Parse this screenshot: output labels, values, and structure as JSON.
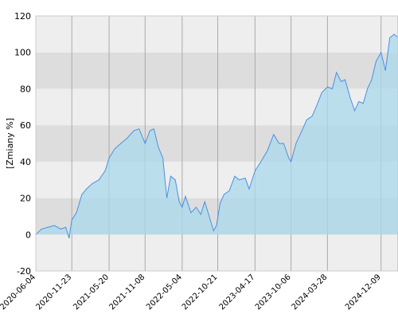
{
  "chart_data": {
    "type": "area",
    "y_label": "[Zmiany %]",
    "color": "#4a90e2",
    "fill": "#a9d8ec",
    "x": [
      "2020-06-04",
      "2020-07-01",
      "2020-08-01",
      "2020-09-01",
      "2020-10-01",
      "2020-10-25",
      "2020-11-10",
      "2020-11-23",
      "2020-12-15",
      "2021-01-10",
      "2021-02-01",
      "2021-03-01",
      "2021-04-01",
      "2021-05-01",
      "2021-05-20",
      "2021-06-15",
      "2021-07-15",
      "2021-08-15",
      "2021-09-15",
      "2021-10-10",
      "2021-11-01",
      "2021-11-08",
      "2021-12-01",
      "2021-12-20",
      "2022-01-10",
      "2022-02-01",
      "2022-02-20",
      "2022-03-10",
      "2022-04-01",
      "2022-04-20",
      "2022-05-04",
      "2022-05-20",
      "2022-06-15",
      "2022-07-10",
      "2022-08-01",
      "2022-08-20",
      "2022-09-10",
      "2022-10-01",
      "2022-10-15",
      "2022-11-01",
      "2022-11-20",
      "2022-12-15",
      "2023-01-10",
      "2023-02-01",
      "2023-03-01",
      "2023-03-20",
      "2023-04-17",
      "2023-05-15",
      "2023-06-15",
      "2023-07-15",
      "2023-08-10",
      "2023-09-01",
      "2023-09-25",
      "2023-10-06",
      "2023-10-30",
      "2023-12-01",
      "2023-12-20",
      "2024-01-15",
      "2024-02-10",
      "2024-03-01",
      "2024-03-28",
      "2024-04-20",
      "2024-05-10",
      "2024-06-01",
      "2024-06-20",
      "2024-07-15",
      "2024-08-05",
      "2024-08-25",
      "2024-09-15",
      "2024-10-05",
      "2024-10-25",
      "2024-11-15",
      "2024-12-09",
      "2024-12-30",
      "2025-01-20",
      "2025-02-10",
      "2025-02-28"
    ],
    "values": [
      0,
      3,
      4,
      5,
      3,
      4,
      -2,
      8,
      12,
      22,
      25,
      28,
      30,
      35,
      42,
      47,
      50,
      53,
      57,
      58,
      52,
      50,
      57,
      58,
      48,
      42,
      20,
      32,
      30,
      18,
      15,
      21,
      12,
      15,
      11,
      18,
      10,
      2,
      5,
      17,
      22,
      24,
      32,
      30,
      31,
      25,
      35,
      40,
      46,
      55,
      50,
      50,
      42,
      40,
      50,
      58,
      63,
      65,
      72,
      78,
      81,
      80,
      89,
      84,
      85,
      75,
      68,
      73,
      72,
      80,
      85,
      95,
      100,
      90,
      108,
      110,
      108
    ],
    "xlim": [
      "2020-06-04",
      "2025-02-28"
    ],
    "xticks": [
      "2020-06-04",
      "2020-11-23",
      "2021-05-20",
      "2021-11-08",
      "2022-05-04",
      "2022-10-21",
      "2023-04-17",
      "2023-10-06",
      "2024-03-28",
      "2024-12-09"
    ],
    "ylim": [
      -20,
      120
    ],
    "yticks": [
      -20,
      0,
      20,
      40,
      60,
      80,
      100,
      120
    ],
    "grid": true
  }
}
